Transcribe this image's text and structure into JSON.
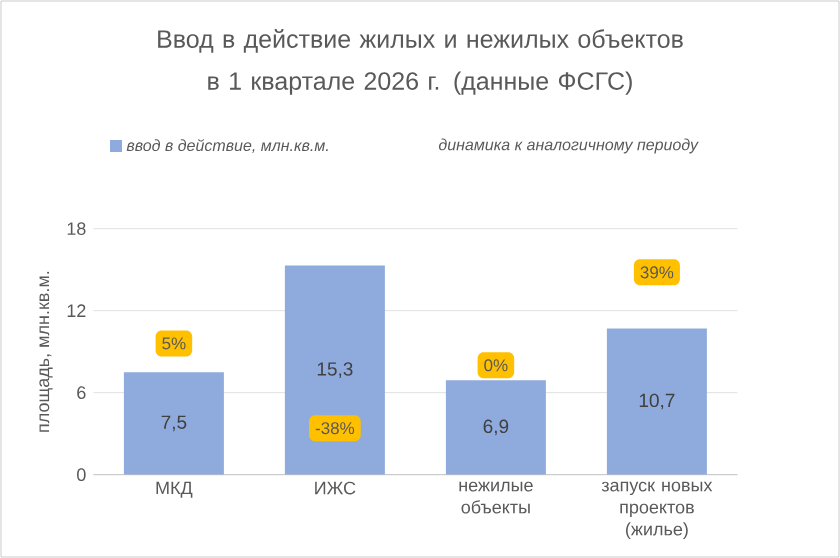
{
  "chart_data": {
    "type": "bar",
    "title": "Ввод в действие жилых и нежилых объектов в 1 квартале 2026 г. (данные ФСГС)",
    "ylabel": "площадь, млн.кв.м.",
    "categories": [
      "МКД",
      "ИЖС",
      "нежилые объекты",
      "запуск новых проектов (жилье)"
    ],
    "series": [
      {
        "name": "ввод в действие, млн.кв.м.",
        "color": "#8faadc",
        "values": [
          7.5,
          15.3,
          6.9,
          10.7
        ],
        "value_labels": [
          "7,5",
          "15,3",
          "6,9",
          "10,7"
        ]
      }
    ],
    "annotations": [
      "динамика к аналогичному периоду",
      {
        "text": "5%",
        "x": "МКД",
        "y": 9.6
      },
      {
        "text": "-38%",
        "x": "ИЖС",
        "y": 3.4
      },
      {
        "text": "0%",
        "x": "нежилые объекты",
        "y": 8.0
      },
      {
        "text": "39%",
        "x": "запуск новых проектов (жилье)",
        "y": 14.8
      }
    ],
    "ylim": [
      0,
      18
    ],
    "yticks": [
      0,
      6,
      12,
      18
    ],
    "grid": "y",
    "legend": "top"
  }
}
